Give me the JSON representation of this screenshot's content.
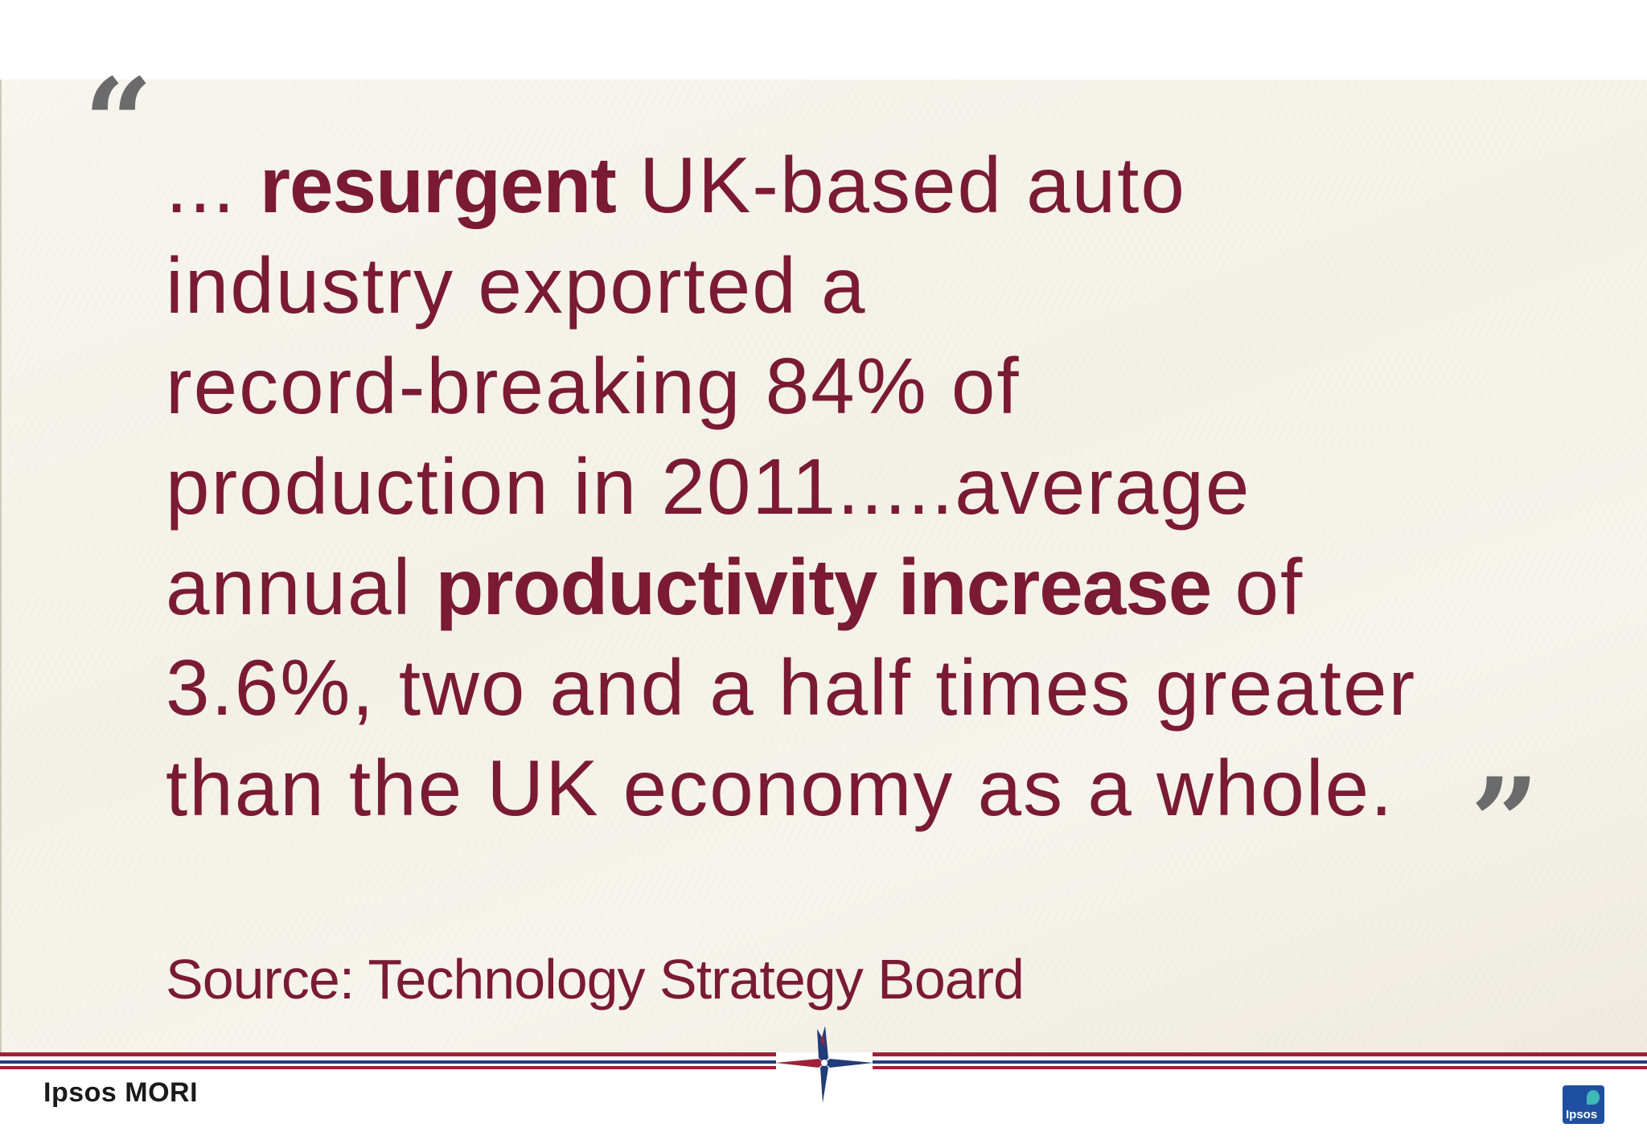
{
  "slide": {
    "open_quote": "“",
    "close_quote": "”",
    "quote_lines": [
      {
        "parts": [
          {
            "text": "... ",
            "bold": false
          },
          {
            "text": "resurgent",
            "bold": true
          },
          {
            "text": " UK-based auto",
            "bold": false
          }
        ]
      },
      {
        "parts": [
          {
            "text": "industry exported a",
            "bold": false
          }
        ]
      },
      {
        "parts": [
          {
            "text": "record-breaking 84% of",
            "bold": false
          }
        ]
      },
      {
        "parts": [
          {
            "text": "production in 2011.....average",
            "bold": false
          }
        ]
      },
      {
        "parts": [
          {
            "text": "annual ",
            "bold": false
          },
          {
            "text": "productivity increase",
            "bold": true
          },
          {
            "text": " of",
            "bold": false
          }
        ]
      },
      {
        "parts": [
          {
            "text": "3.6%, two and a half times greater",
            "bold": false
          }
        ]
      },
      {
        "parts": [
          {
            "text": "than the UK economy as a whole.",
            "bold": false
          }
        ]
      }
    ],
    "source": "Source: Technology Strategy Board"
  },
  "footer": {
    "brand": "Ipsos MORI",
    "logo_text": "Ipsos"
  },
  "colors": {
    "quote_text": "#7a1a33",
    "quote_marks": "#6b6b6b",
    "rule_red": "#9e2237",
    "rule_blue": "#223c79",
    "logo_blue": "#1f4fa0",
    "logo_teal": "#3fb8b8"
  },
  "icons": {
    "compass": "compass-rose-icon"
  }
}
